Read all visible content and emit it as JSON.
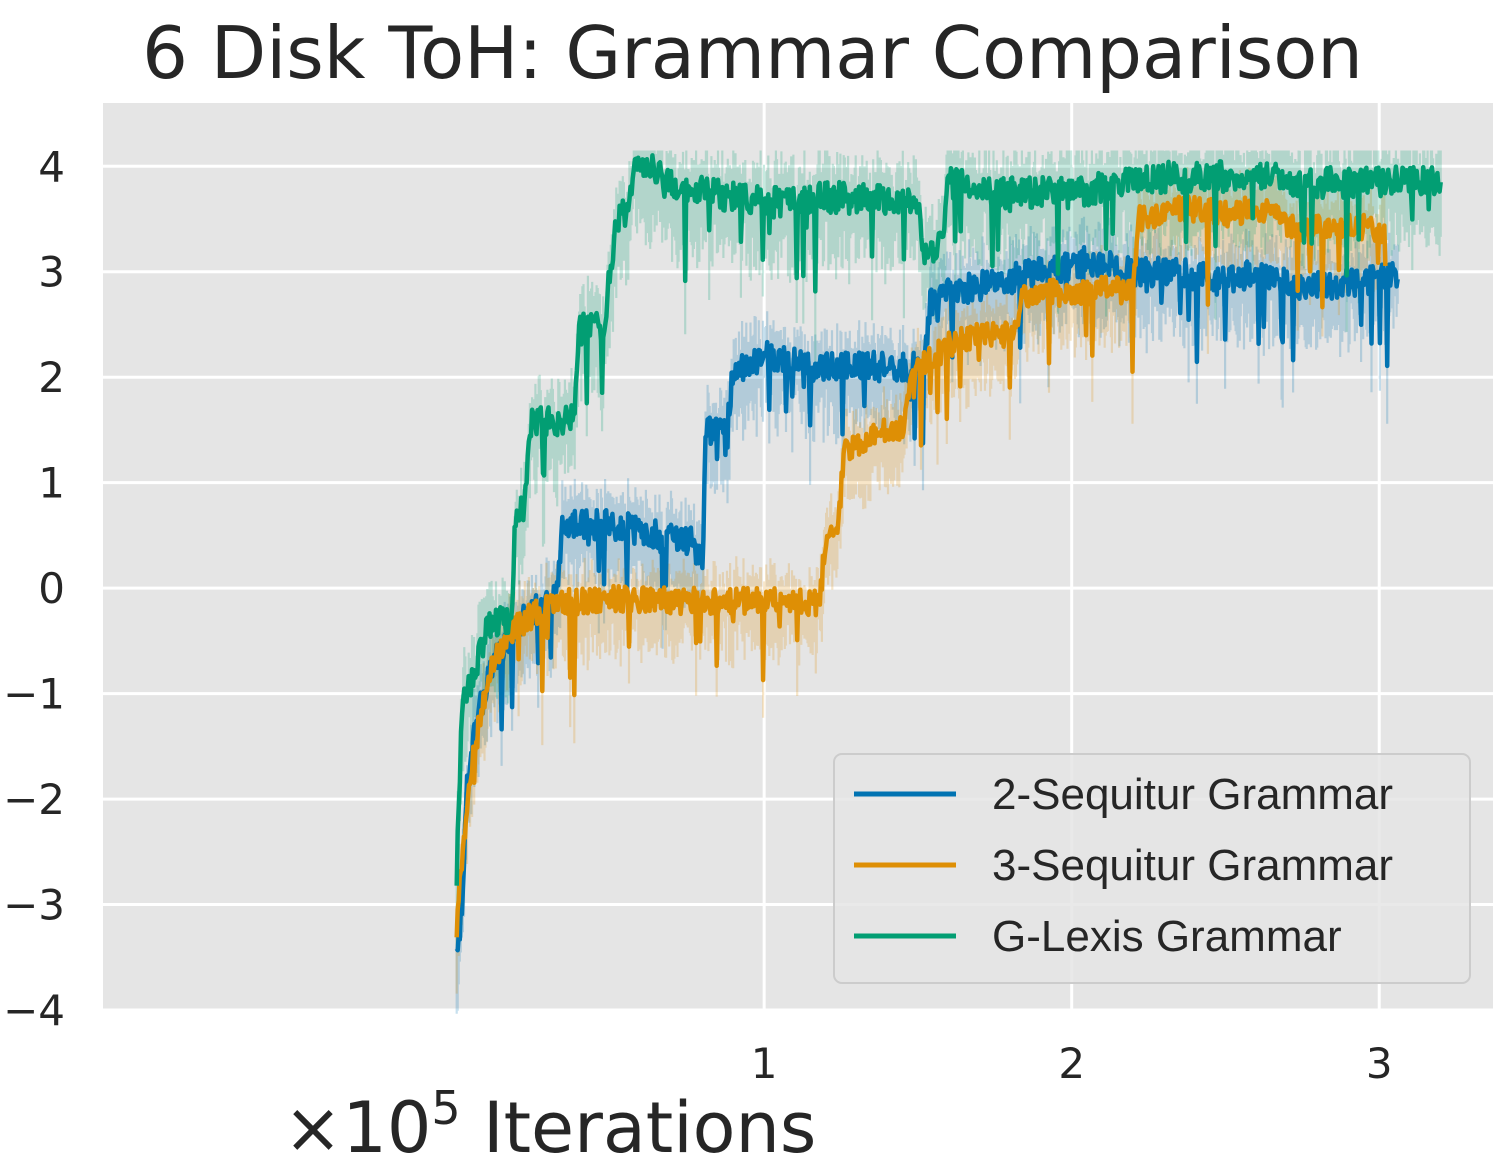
{
  "chart_data": {
    "type": "line",
    "title": "6 Disk ToH: Grammar Comparison",
    "xlabel": {
      "prefix": "×10",
      "exponent": "5",
      "text": " Iterations"
    },
    "ylabel": "",
    "xlim": [
      -1.15,
      3.37
    ],
    "ylim": [
      -4,
      4.6
    ],
    "x_ticks": [
      1,
      2,
      3
    ],
    "x_tick_labels": [
      "1",
      "2",
      "3"
    ],
    "y_ticks": [
      -4,
      -3,
      -2,
      -1,
      0,
      1,
      2,
      3,
      4
    ],
    "y_tick_labels": [
      "−4",
      "−3",
      "−2",
      "−1",
      "0",
      "1",
      "2",
      "3",
      "4"
    ],
    "grid": true,
    "legend_position": "lower-right",
    "background": "#e5e5e5",
    "series": [
      {
        "name": "2-Sequitur Grammar",
        "color": "#0173b2",
        "x_end": 3.06,
        "noise": 0.28,
        "band": 0.45,
        "points": [
          [
            0.0,
            -3.4
          ],
          [
            0.02,
            -3.0
          ],
          [
            0.03,
            -2.0
          ],
          [
            0.05,
            -1.5
          ],
          [
            0.08,
            -1.1
          ],
          [
            0.12,
            -0.7
          ],
          [
            0.2,
            -0.35
          ],
          [
            0.3,
            -0.1
          ],
          [
            0.33,
            -0.05
          ],
          [
            0.34,
            0.55
          ],
          [
            0.38,
            0.6
          ],
          [
            0.5,
            0.6
          ],
          [
            0.6,
            0.55
          ],
          [
            0.72,
            0.45
          ],
          [
            0.76,
            0.45
          ],
          [
            0.78,
            0.3
          ],
          [
            0.8,
            0.3
          ],
          [
            0.81,
            1.5
          ],
          [
            0.88,
            1.5
          ],
          [
            0.9,
            2.1
          ],
          [
            1.0,
            2.2
          ],
          [
            1.15,
            2.1
          ],
          [
            1.3,
            2.1
          ],
          [
            1.45,
            2.1
          ],
          [
            1.52,
            2.1
          ],
          [
            1.54,
            2.7
          ],
          [
            1.6,
            2.8
          ],
          [
            1.75,
            2.9
          ],
          [
            1.9,
            3.0
          ],
          [
            2.05,
            3.1
          ],
          [
            2.2,
            3.0
          ],
          [
            2.35,
            3.0
          ],
          [
            2.5,
            2.9
          ],
          [
            2.6,
            3.0
          ],
          [
            2.75,
            2.85
          ],
          [
            2.9,
            2.9
          ],
          [
            3.06,
            2.95
          ]
        ]
      },
      {
        "name": "3-Sequitur Grammar",
        "color": "#de8f05",
        "x_end": 3.02,
        "noise": 0.25,
        "band": 0.4,
        "points": [
          [
            0.0,
            -3.2
          ],
          [
            0.02,
            -2.5
          ],
          [
            0.04,
            -1.8
          ],
          [
            0.08,
            -1.2
          ],
          [
            0.12,
            -0.7
          ],
          [
            0.2,
            -0.35
          ],
          [
            0.3,
            -0.15
          ],
          [
            0.5,
            -0.1
          ],
          [
            0.7,
            -0.12
          ],
          [
            0.9,
            -0.12
          ],
          [
            1.12,
            -0.12
          ],
          [
            1.18,
            -0.15
          ],
          [
            1.2,
            0.5
          ],
          [
            1.24,
            0.6
          ],
          [
            1.26,
            1.3
          ],
          [
            1.35,
            1.45
          ],
          [
            1.45,
            1.55
          ],
          [
            1.48,
            2.05
          ],
          [
            1.6,
            2.3
          ],
          [
            1.7,
            2.4
          ],
          [
            1.82,
            2.4
          ],
          [
            1.84,
            2.75
          ],
          [
            1.9,
            2.85
          ],
          [
            2.0,
            2.75
          ],
          [
            2.1,
            2.85
          ],
          [
            2.2,
            2.8
          ],
          [
            2.22,
            3.5
          ],
          [
            2.35,
            3.6
          ],
          [
            2.5,
            3.55
          ],
          [
            2.6,
            3.6
          ],
          [
            2.75,
            3.4
          ],
          [
            2.9,
            3.45
          ],
          [
            3.02,
            3.4
          ]
        ]
      },
      {
        "name": "G-Lexis Grammar",
        "color": "#029e73",
        "x_end": 3.2,
        "noise": 0.3,
        "band": 0.5,
        "points": [
          [
            0.0,
            -2.4
          ],
          [
            0.01,
            -1.8
          ],
          [
            0.02,
            -1.1
          ],
          [
            0.06,
            -0.8
          ],
          [
            0.1,
            -0.4
          ],
          [
            0.18,
            -0.25
          ],
          [
            0.19,
            0.7
          ],
          [
            0.22,
            0.75
          ],
          [
            0.24,
            1.55
          ],
          [
            0.35,
            1.6
          ],
          [
            0.38,
            1.6
          ],
          [
            0.4,
            2.45
          ],
          [
            0.48,
            2.5
          ],
          [
            0.5,
            3.0
          ],
          [
            0.52,
            3.5
          ],
          [
            0.56,
            3.6
          ],
          [
            0.58,
            4.05
          ],
          [
            0.62,
            4.0
          ],
          [
            0.7,
            3.8
          ],
          [
            0.8,
            3.75
          ],
          [
            1.0,
            3.65
          ],
          [
            1.2,
            3.7
          ],
          [
            1.4,
            3.7
          ],
          [
            1.5,
            3.65
          ],
          [
            1.52,
            3.2
          ],
          [
            1.58,
            3.25
          ],
          [
            1.6,
            3.85
          ],
          [
            1.75,
            3.75
          ],
          [
            1.9,
            3.75
          ],
          [
            2.05,
            3.75
          ],
          [
            2.2,
            3.9
          ],
          [
            2.4,
            3.9
          ],
          [
            2.6,
            3.9
          ],
          [
            2.8,
            3.85
          ],
          [
            3.0,
            3.85
          ],
          [
            3.2,
            3.85
          ]
        ]
      }
    ]
  }
}
